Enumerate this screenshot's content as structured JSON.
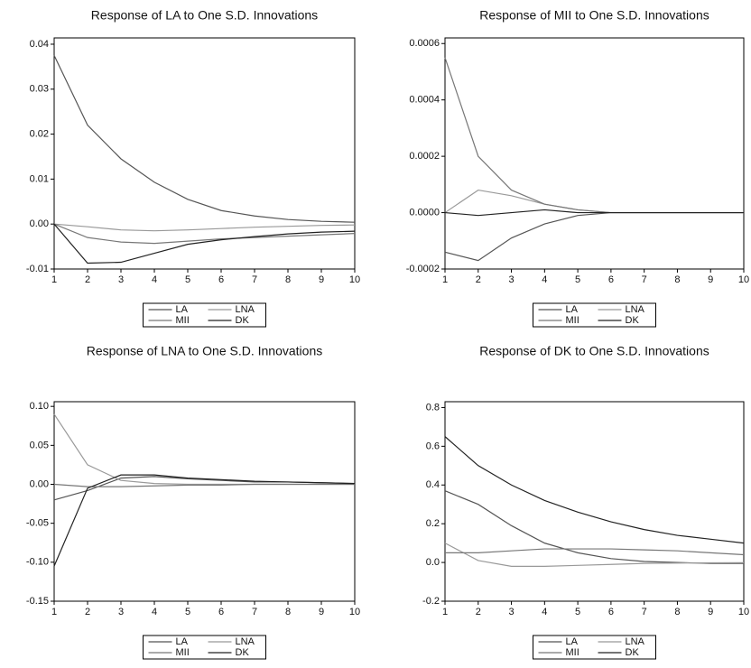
{
  "chart_data": [
    {
      "type": "line",
      "title": "Response of LA to One S.D. Innovations",
      "x": [
        1,
        2,
        3,
        4,
        5,
        6,
        7,
        8,
        9,
        10
      ],
      "xlim": [
        1,
        10
      ],
      "xticks": [
        1,
        2,
        3,
        4,
        5,
        6,
        7,
        8,
        9,
        10
      ],
      "ylim": [
        -0.01,
        0.0414
      ],
      "yticks": [
        0.04,
        0.03,
        0.02,
        0.01,
        {
          "value": 0,
          "label": "0.00"
        },
        -0.01
      ],
      "legend": "bottom",
      "series": [
        {
          "name": "LA",
          "color": "#555555",
          "values": [
            0.0375,
            0.022,
            0.0145,
            0.0093,
            0.0055,
            0.003,
            0.0018,
            0.001,
            0.0006,
            0.0004
          ]
        },
        {
          "name": "LNA",
          "color": "#999999",
          "values": [
            0,
            -0.0006,
            -0.0013,
            -0.0015,
            -0.0013,
            -0.001,
            -0.0007,
            -0.0005,
            -0.0003,
            -0.0002
          ]
        },
        {
          "name": "MII",
          "color": "#777777",
          "values": [
            0,
            -0.003,
            -0.004,
            -0.0043,
            -0.0038,
            -0.0033,
            -0.003,
            -0.0027,
            -0.0024,
            -0.0021
          ]
        },
        {
          "name": "DK",
          "color": "#222222",
          "values": [
            0,
            -0.0087,
            -0.0085,
            -0.0065,
            -0.0045,
            -0.0035,
            -0.0028,
            -0.0022,
            -0.0018,
            -0.0016
          ]
        }
      ]
    },
    {
      "type": "line",
      "title": "Response of MII to One S.D. Innovations",
      "x": [
        1,
        2,
        3,
        4,
        5,
        6,
        7,
        8,
        9,
        10
      ],
      "xlim": [
        1,
        10
      ],
      "xticks": [
        1,
        2,
        3,
        4,
        5,
        6,
        7,
        8,
        9,
        10
      ],
      "ylim": [
        -0.0002,
        0.00062
      ],
      "yticks": [
        0.0006,
        0.0004,
        0.0002,
        {
          "value": 0,
          "label": "0.0000"
        },
        -0.0002
      ],
      "legend": "bottom",
      "series": [
        {
          "name": "LA",
          "color": "#555555",
          "values": [
            -0.00014,
            -0.00017,
            -9e-05,
            -4e-05,
            -1e-05,
            0,
            0,
            0,
            0,
            0
          ]
        },
        {
          "name": "LNA",
          "color": "#999999",
          "values": [
            0,
            8e-05,
            6e-05,
            3e-05,
            1e-05,
            0,
            0,
            0,
            0,
            0
          ]
        },
        {
          "name": "MII",
          "color": "#777777",
          "values": [
            0.00055,
            0.0002,
            8e-05,
            3e-05,
            1e-05,
            0,
            0,
            0,
            0,
            0
          ]
        },
        {
          "name": "DK",
          "color": "#222222",
          "values": [
            0,
            -1e-05,
            0,
            1e-05,
            0,
            0,
            0,
            0,
            0,
            0
          ]
        }
      ]
    },
    {
      "type": "line",
      "title": "Response of LNA to One S.D. Innovations",
      "x": [
        1,
        2,
        3,
        4,
        5,
        6,
        7,
        8,
        9,
        10
      ],
      "xlim": [
        1,
        10
      ],
      "xticks": [
        1,
        2,
        3,
        4,
        5,
        6,
        7,
        8,
        9,
        10
      ],
      "ylim": [
        -0.15,
        0.106
      ],
      "yticks": [
        {
          "value": 0.1,
          "label": "0.10"
        },
        0.05,
        {
          "value": 0,
          "label": "0.00"
        },
        -0.05,
        {
          "value": -0.1,
          "label": "-0.10"
        },
        -0.15
      ],
      "legend": "bottom",
      "series": [
        {
          "name": "LA",
          "color": "#555555",
          "values": [
            -0.02,
            -0.008,
            0.008,
            0.01,
            0.007,
            0.005,
            0.003,
            0.003,
            0.002,
            0.001
          ]
        },
        {
          "name": "LNA",
          "color": "#999999",
          "values": [
            0.09,
            0.025,
            0.005,
            0.001,
            0,
            0,
            0,
            0,
            0,
            0
          ]
        },
        {
          "name": "MII",
          "color": "#777777",
          "values": [
            0,
            -0.003,
            -0.003,
            -0.002,
            -0.001,
            -0.001,
            0,
            0,
            0,
            0
          ]
        },
        {
          "name": "DK",
          "color": "#222222",
          "values": [
            -0.105,
            -0.005,
            0.012,
            0.012,
            0.008,
            0.006,
            0.004,
            0.003,
            0.002,
            0.001
          ]
        }
      ]
    },
    {
      "type": "line",
      "title": "Response of DK to One S.D. Innovations",
      "x": [
        1,
        2,
        3,
        4,
        5,
        6,
        7,
        8,
        9,
        10
      ],
      "xlim": [
        1,
        10
      ],
      "xticks": [
        1,
        2,
        3,
        4,
        5,
        6,
        7,
        8,
        9,
        10
      ],
      "ylim": [
        -0.2,
        0.83
      ],
      "yticks": [
        0.8,
        0.6,
        0.4,
        0.2,
        {
          "value": 0,
          "label": "0.0"
        },
        -0.2
      ],
      "legend": "bottom",
      "series": [
        {
          "name": "LA",
          "color": "#555555",
          "values": [
            0.37,
            0.3,
            0.19,
            0.1,
            0.05,
            0.02,
            0.005,
            0,
            -0.005,
            -0.005
          ]
        },
        {
          "name": "LNA",
          "color": "#999999",
          "values": [
            0.1,
            0.01,
            -0.02,
            -0.02,
            -0.015,
            -0.01,
            -0.005,
            -0.003,
            -0.002,
            -0.001
          ]
        },
        {
          "name": "MII",
          "color": "#777777",
          "values": [
            0.05,
            0.05,
            0.06,
            0.07,
            0.07,
            0.07,
            0.065,
            0.06,
            0.05,
            0.04
          ]
        },
        {
          "name": "DK",
          "color": "#222222",
          "values": [
            0.65,
            0.5,
            0.4,
            0.32,
            0.26,
            0.21,
            0.17,
            0.14,
            0.12,
            0.1
          ]
        }
      ]
    }
  ]
}
